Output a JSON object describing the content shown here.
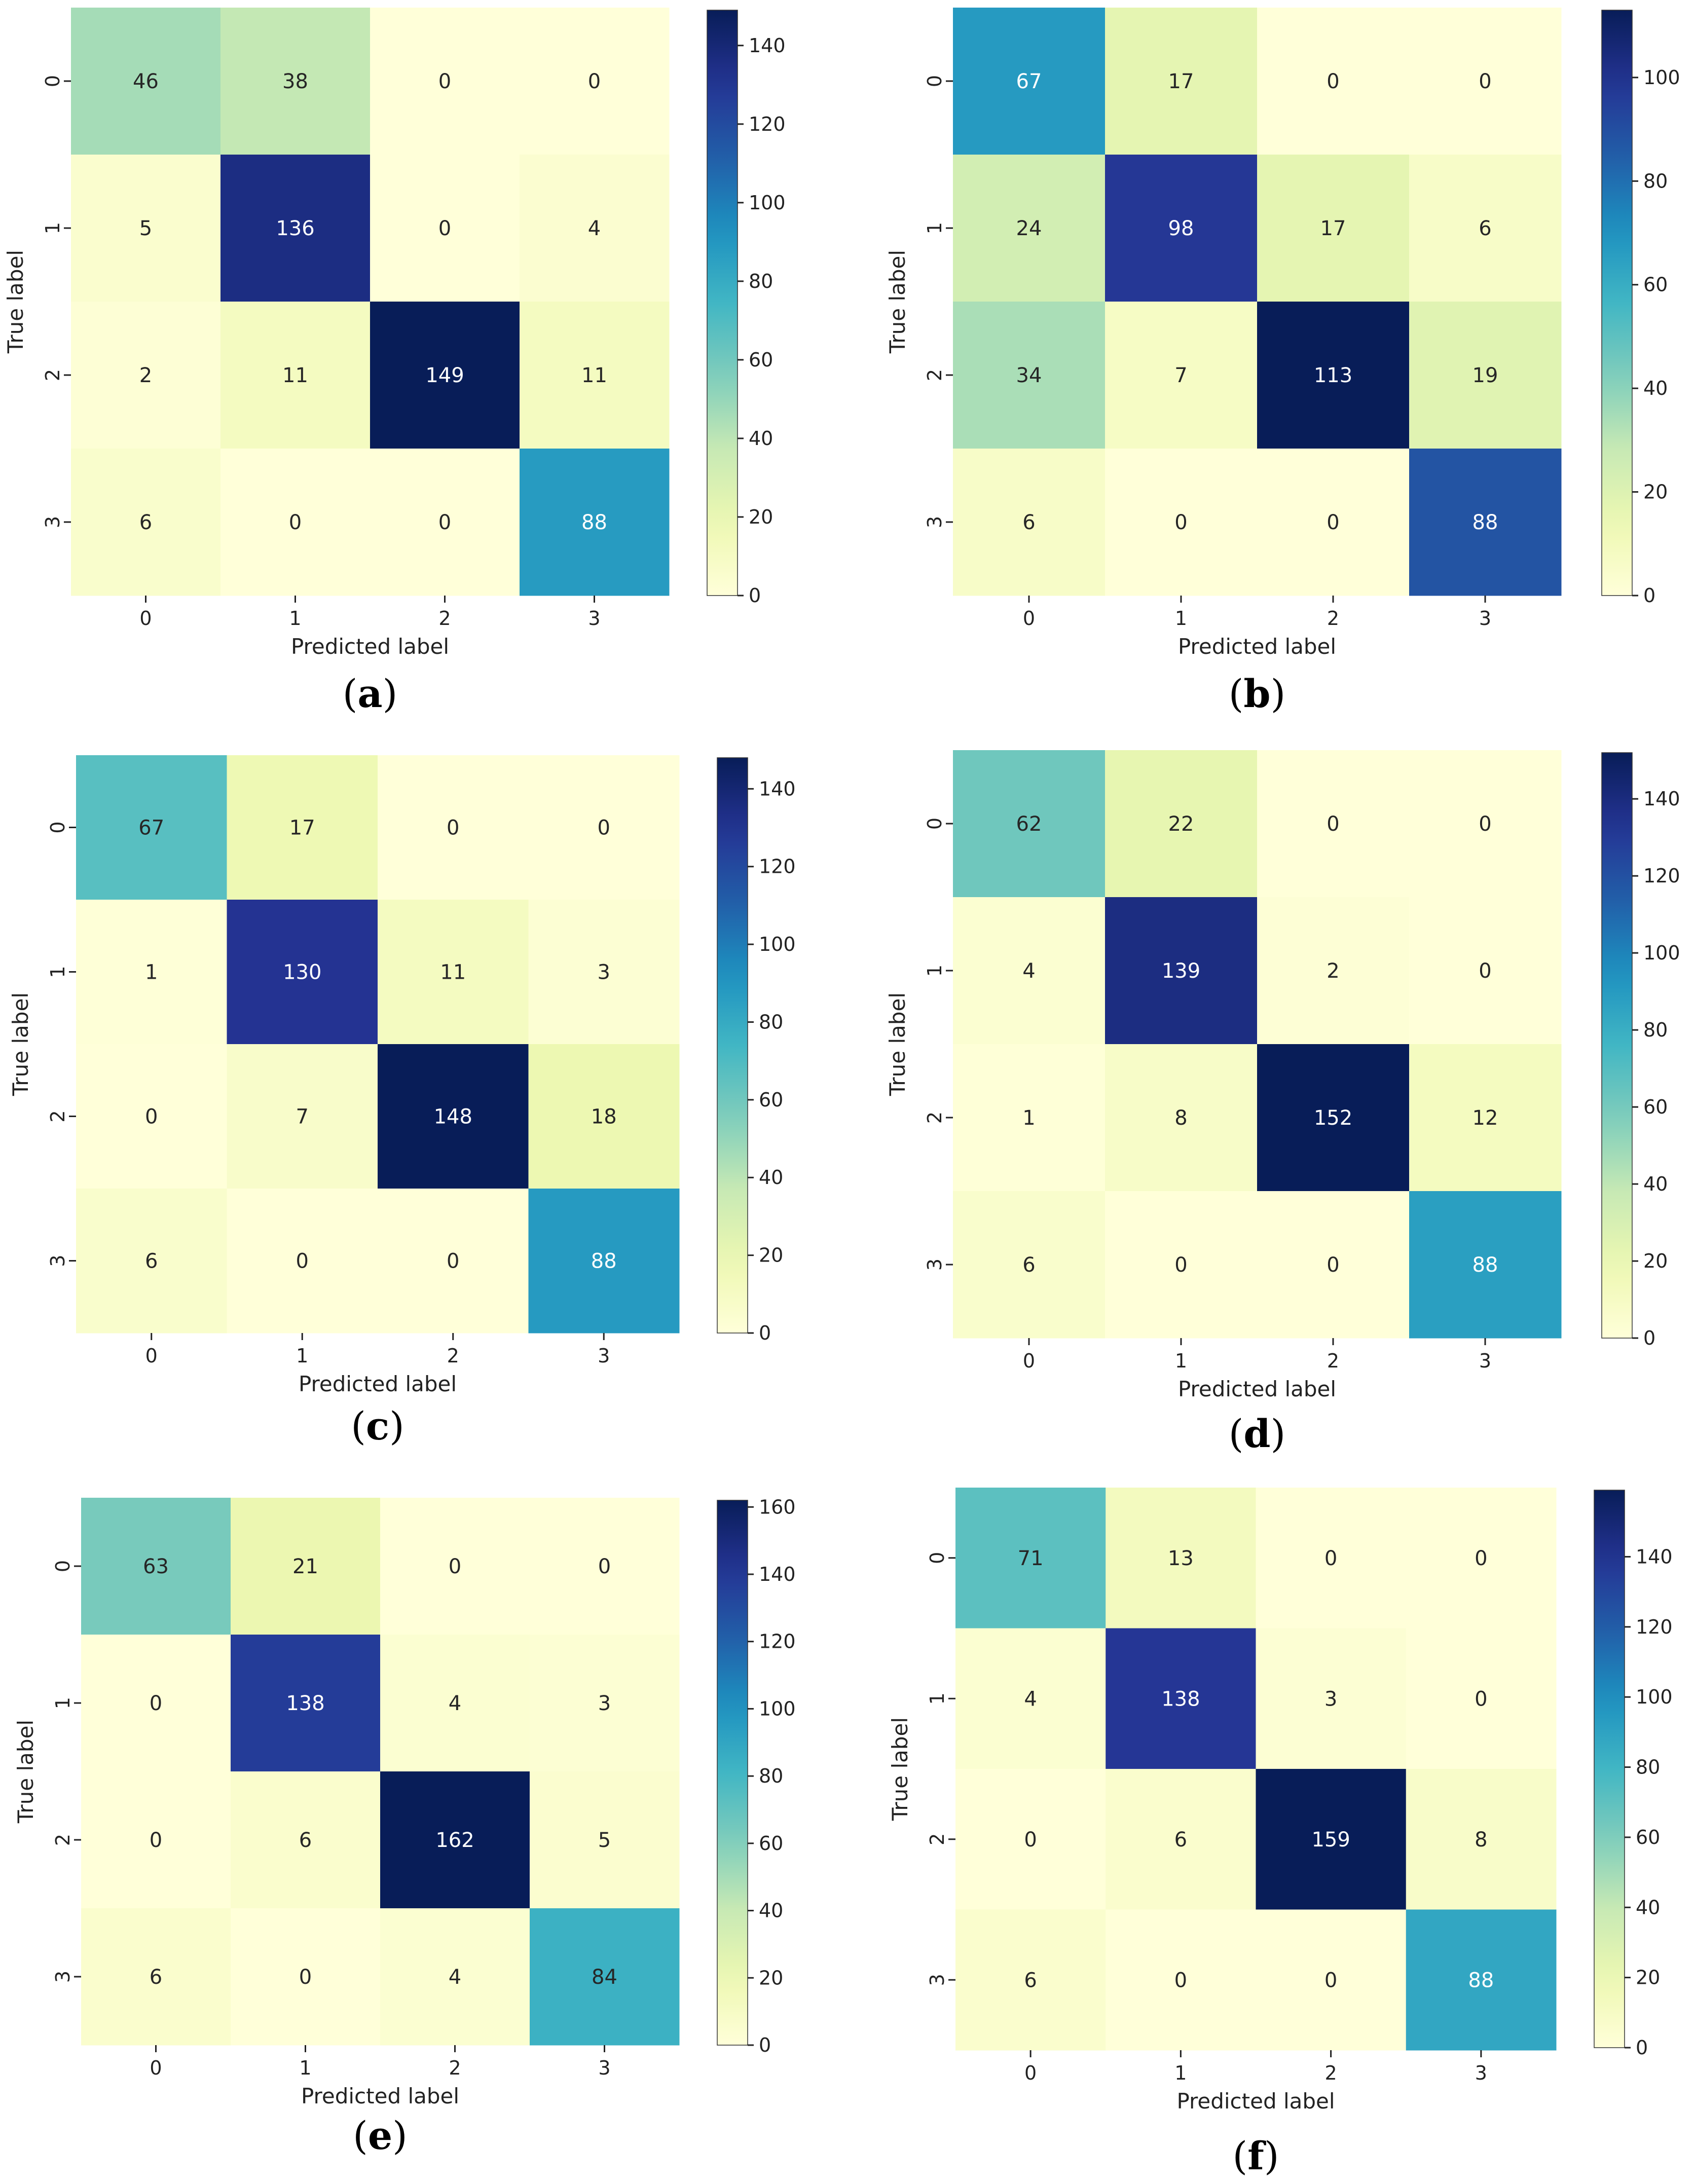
{
  "chart_data": [
    {
      "type": "heatmap",
      "panel": "a",
      "caption": "(a)",
      "rows": [
        "0",
        "1",
        "2",
        "3"
      ],
      "cols": [
        "0",
        "1",
        "2",
        "3"
      ],
      "matrix": [
        [
          46,
          38,
          0,
          0
        ],
        [
          5,
          136,
          0,
          4
        ],
        [
          2,
          11,
          149,
          11
        ],
        [
          6,
          0,
          0,
          88
        ]
      ],
      "xlabel": "Predicted label",
      "ylabel": "True label",
      "colorbar": {
        "min": 0,
        "max": 149,
        "ticks": [
          "0",
          "20",
          "40",
          "60",
          "80",
          "100",
          "120",
          "140"
        ]
      }
    },
    {
      "type": "heatmap",
      "panel": "b",
      "caption": "(b)",
      "rows": [
        "0",
        "1",
        "2",
        "3"
      ],
      "cols": [
        "0",
        "1",
        "2",
        "3"
      ],
      "matrix": [
        [
          67,
          17,
          0,
          0
        ],
        [
          24,
          98,
          17,
          6
        ],
        [
          34,
          7,
          113,
          19
        ],
        [
          6,
          0,
          0,
          88
        ]
      ],
      "xlabel": "Predicted label",
      "ylabel": "True label",
      "colorbar": {
        "min": 0,
        "max": 113,
        "ticks": [
          "0",
          "20",
          "40",
          "60",
          "80",
          "100"
        ]
      }
    },
    {
      "type": "heatmap",
      "panel": "c",
      "caption": "(c)",
      "rows": [
        "0",
        "1",
        "2",
        "3"
      ],
      "cols": [
        "0",
        "1",
        "2",
        "3"
      ],
      "matrix": [
        [
          67,
          17,
          0,
          0
        ],
        [
          1,
          130,
          11,
          3
        ],
        [
          0,
          7,
          148,
          18
        ],
        [
          6,
          0,
          0,
          88
        ]
      ],
      "xlabel": "Predicted label",
      "ylabel": "True label",
      "colorbar": {
        "min": 0,
        "max": 148,
        "ticks": [
          "0",
          "20",
          "40",
          "60",
          "80",
          "100",
          "120",
          "140"
        ]
      }
    },
    {
      "type": "heatmap",
      "panel": "d",
      "caption": "(d)",
      "rows": [
        "0",
        "1",
        "2",
        "3"
      ],
      "cols": [
        "0",
        "1",
        "2",
        "3"
      ],
      "matrix": [
        [
          62,
          22,
          0,
          0
        ],
        [
          4,
          139,
          2,
          0
        ],
        [
          1,
          8,
          152,
          12
        ],
        [
          6,
          0,
          0,
          88
        ]
      ],
      "xlabel": "Predicted label",
      "ylabel": "True label",
      "colorbar": {
        "min": 0,
        "max": 152,
        "ticks": [
          "0",
          "20",
          "40",
          "60",
          "80",
          "100",
          "120",
          "140"
        ]
      }
    },
    {
      "type": "heatmap",
      "panel": "e",
      "caption": "(e)",
      "rows": [
        "0",
        "1",
        "2",
        "3"
      ],
      "cols": [
        "0",
        "1",
        "2",
        "3"
      ],
      "matrix": [
        [
          63,
          21,
          0,
          0
        ],
        [
          0,
          138,
          4,
          3
        ],
        [
          0,
          6,
          162,
          5
        ],
        [
          6,
          0,
          4,
          84
        ]
      ],
      "xlabel": "Predicted label",
      "ylabel": "True label",
      "colorbar": {
        "min": 0,
        "max": 162,
        "ticks": [
          "0",
          "20",
          "40",
          "60",
          "80",
          "100",
          "120",
          "140",
          "160"
        ]
      }
    },
    {
      "type": "heatmap",
      "panel": "f",
      "caption": "(f)",
      "rows": [
        "0",
        "1",
        "2",
        "3"
      ],
      "cols": [
        "0",
        "1",
        "2",
        "3"
      ],
      "matrix": [
        [
          71,
          13,
          0,
          0
        ],
        [
          4,
          138,
          3,
          0
        ],
        [
          0,
          6,
          159,
          8
        ],
        [
          6,
          0,
          0,
          88
        ]
      ],
      "xlabel": "Predicted label",
      "ylabel": "True label",
      "colorbar": {
        "min": 0,
        "max": 159,
        "ticks": [
          "0",
          "20",
          "40",
          "60",
          "80",
          "100",
          "120",
          "140"
        ]
      }
    }
  ],
  "colormap": {
    "name": "YlGnBu",
    "stops": [
      "#ffffd9",
      "#edf8b1",
      "#c7e9b4",
      "#7fcdbb",
      "#41b6c4",
      "#1d91c0",
      "#225ea8",
      "#253494",
      "#081d58"
    ]
  }
}
